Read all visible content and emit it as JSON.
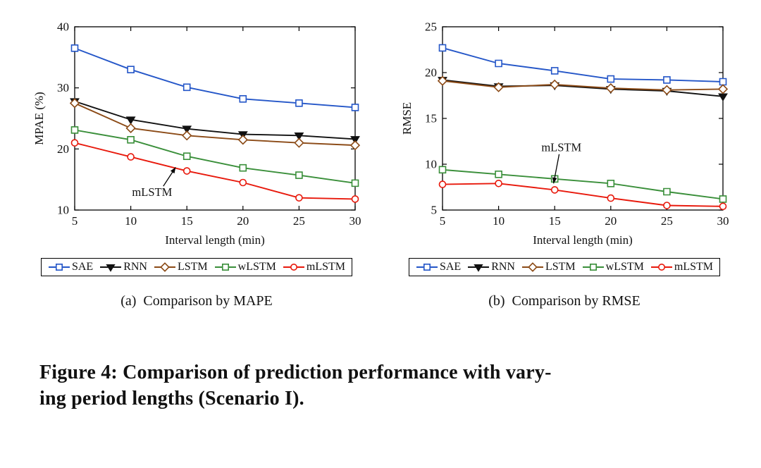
{
  "figure": {
    "caption_line1": "Figure 4: Comparison of prediction performance with vary-",
    "caption_line2": "ing period lengths (Scenario I)."
  },
  "chart_data": [
    {
      "type": "line",
      "caption": "(a)  Comparison by MAPE",
      "xlabel": "Interval length (min)",
      "ylabel": "MPAE (%)",
      "x": [
        5,
        10,
        15,
        20,
        25,
        30
      ],
      "xlim": [
        5,
        30
      ],
      "ylim": [
        10,
        40
      ],
      "xticks": [
        5,
        10,
        15,
        20,
        25,
        30
      ],
      "yticks": [
        10,
        20,
        30,
        40
      ],
      "grid": false,
      "legend_position": "below",
      "series": [
        {
          "name": "SAE",
          "color": "#2456c8",
          "marker": "square",
          "values": [
            36.5,
            33.0,
            30.1,
            28.2,
            27.5,
            26.8
          ]
        },
        {
          "name": "RNN",
          "color": "#111111",
          "marker": "triangle-down",
          "values": [
            27.8,
            24.8,
            23.3,
            22.4,
            22.2,
            21.6
          ]
        },
        {
          "name": "LSTM",
          "color": "#8b4a16",
          "marker": "diamond",
          "values": [
            27.5,
            23.4,
            22.2,
            21.5,
            21.0,
            20.6
          ]
        },
        {
          "name": "wLSTM",
          "color": "#3a8f3a",
          "marker": "square",
          "values": [
            23.1,
            21.5,
            18.8,
            16.9,
            15.7,
            14.4
          ]
        },
        {
          "name": "mLSTM",
          "color": "#e8190c",
          "marker": "circle",
          "values": [
            21.0,
            18.7,
            16.4,
            14.5,
            12.0,
            11.8
          ]
        }
      ],
      "annotation": {
        "text": "mLSTM",
        "tx": 11.9,
        "ty": 13.0,
        "x1": 12.9,
        "y1": 13.9,
        "x2": 14.0,
        "y2": 17.0
      }
    },
    {
      "type": "line",
      "caption": "(b)  Comparison by RMSE",
      "xlabel": "Interval length (min)",
      "ylabel": "RMSE",
      "x": [
        5,
        10,
        15,
        20,
        25,
        30
      ],
      "xlim": [
        5,
        30
      ],
      "ylim": [
        5,
        25
      ],
      "xticks": [
        5,
        10,
        15,
        20,
        25,
        30
      ],
      "yticks": [
        5,
        10,
        15,
        20,
        25
      ],
      "grid": false,
      "legend_position": "below",
      "series": [
        {
          "name": "SAE",
          "color": "#2456c8",
          "marker": "square",
          "values": [
            22.7,
            21.0,
            20.2,
            19.3,
            19.2,
            19.0
          ]
        },
        {
          "name": "RNN",
          "color": "#111111",
          "marker": "triangle-down",
          "values": [
            19.2,
            18.5,
            18.6,
            18.2,
            18.0,
            17.4
          ]
        },
        {
          "name": "LSTM",
          "color": "#8b4a16",
          "marker": "diamond",
          "values": [
            19.1,
            18.4,
            18.7,
            18.3,
            18.1,
            18.2
          ]
        },
        {
          "name": "wLSTM",
          "color": "#3a8f3a",
          "marker": "square",
          "values": [
            9.4,
            8.9,
            8.4,
            7.9,
            7.0,
            6.2
          ]
        },
        {
          "name": "mLSTM",
          "color": "#e8190c",
          "marker": "circle",
          "values": [
            7.8,
            7.9,
            7.2,
            6.3,
            5.5,
            5.4
          ]
        }
      ],
      "annotation": {
        "text": "mLSTM",
        "tx": 15.6,
        "ty": 11.9,
        "x1": 15.4,
        "y1": 11.1,
        "x2": 14.9,
        "y2": 7.9
      }
    }
  ]
}
